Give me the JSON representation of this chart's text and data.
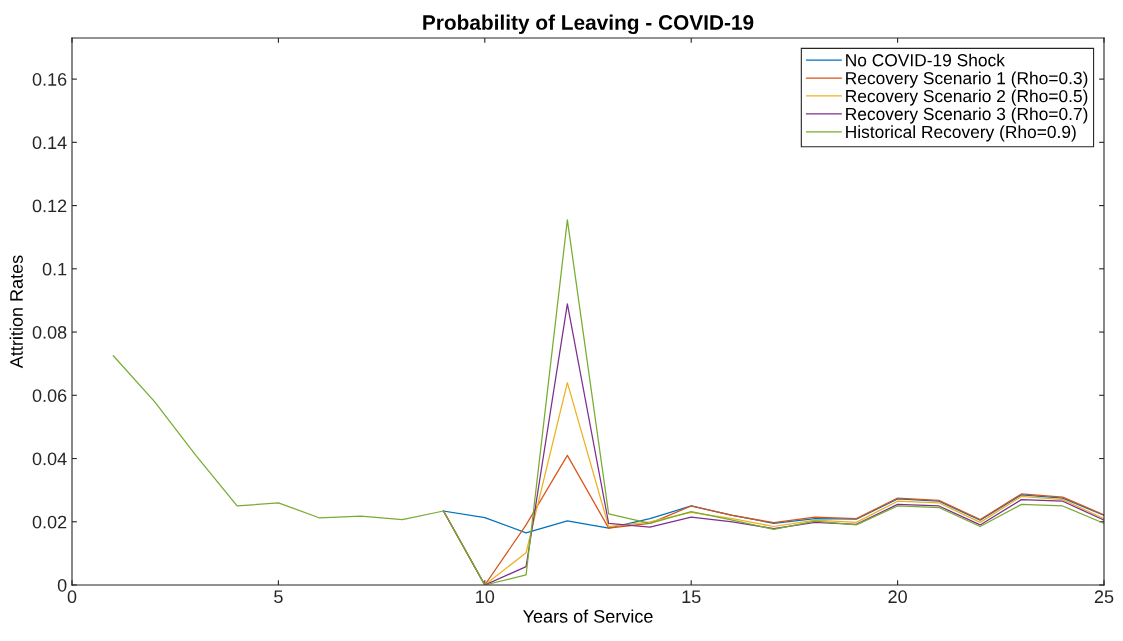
{
  "chart_data": {
    "type": "line",
    "title": "Probability of Leaving - COVID-19",
    "xlabel": "Years of Service",
    "ylabel": "Attrition Rates",
    "x": [
      1,
      2,
      3,
      4,
      5,
      6,
      7,
      8,
      9,
      10,
      11,
      12,
      13,
      14,
      15,
      16,
      17,
      18,
      19,
      20,
      21,
      22,
      23,
      24,
      25
    ],
    "xlim": [
      0,
      25
    ],
    "xticks": [
      0,
      5,
      10,
      15,
      20,
      25
    ],
    "ylim": [
      0,
      0.173
    ],
    "yticks": [
      0,
      0.02,
      0.04,
      0.06,
      0.08,
      0.1,
      0.12,
      0.14,
      0.16
    ],
    "grid": false,
    "legend": "top right",
    "marker": "none",
    "line_style": "solid",
    "series": [
      {
        "name": "No COVID-19 Shock",
        "color": "#0072bd",
        "values": [
          null,
          null,
          null,
          null,
          null,
          null,
          null,
          null,
          0.0234,
          0.0213,
          0.0165,
          0.0203,
          0.018,
          0.021,
          0.025,
          0.022,
          0.0195,
          0.021,
          0.0208,
          0.0272,
          0.0265,
          0.0205,
          0.0285,
          0.0275,
          0.022
        ]
      },
      {
        "name": "Recovery Scenario 1 (Rho=0.3)",
        "color": "#d95319",
        "values": [
          null,
          null,
          null,
          null,
          null,
          null,
          null,
          null,
          0.0234,
          0,
          0.019,
          0.041,
          0.018,
          0.0195,
          0.025,
          0.022,
          0.0197,
          0.0215,
          0.021,
          0.0275,
          0.0268,
          0.0207,
          0.0288,
          0.0278,
          0.0222
        ]
      },
      {
        "name": "Recovery Scenario 2 (Rho=0.5)",
        "color": "#edb120",
        "values": [
          null,
          null,
          null,
          null,
          null,
          null,
          null,
          null,
          0.0234,
          0,
          0.0102,
          0.064,
          0.0185,
          0.02,
          0.023,
          0.021,
          0.0185,
          0.0205,
          0.0198,
          0.0265,
          0.026,
          0.0198,
          0.028,
          0.027,
          0.021
        ]
      },
      {
        "name": "Recovery Scenario 3 (Rho=0.7)",
        "color": "#7e2f8e",
        "values": [
          null,
          null,
          null,
          null,
          null,
          null,
          null,
          null,
          0.0234,
          0,
          0.0058,
          0.0889,
          0.0195,
          0.0183,
          0.0215,
          0.02,
          0.0178,
          0.0198,
          0.0192,
          0.0255,
          0.025,
          0.019,
          0.027,
          0.0265,
          0.0205
        ]
      },
      {
        "name": "Historical Recovery (Rho=0.9)",
        "color": "#77ac30",
        "values": [
          0.0725,
          0.058,
          0.041,
          0.025,
          0.026,
          0.0212,
          0.0218,
          0.0207,
          0.0234,
          0,
          0.0032,
          0.1155,
          0.0225,
          0.0195,
          0.0232,
          0.0205,
          0.0176,
          0.0202,
          0.019,
          0.025,
          0.0245,
          0.0185,
          0.0255,
          0.025,
          0.0195
        ]
      }
    ]
  }
}
